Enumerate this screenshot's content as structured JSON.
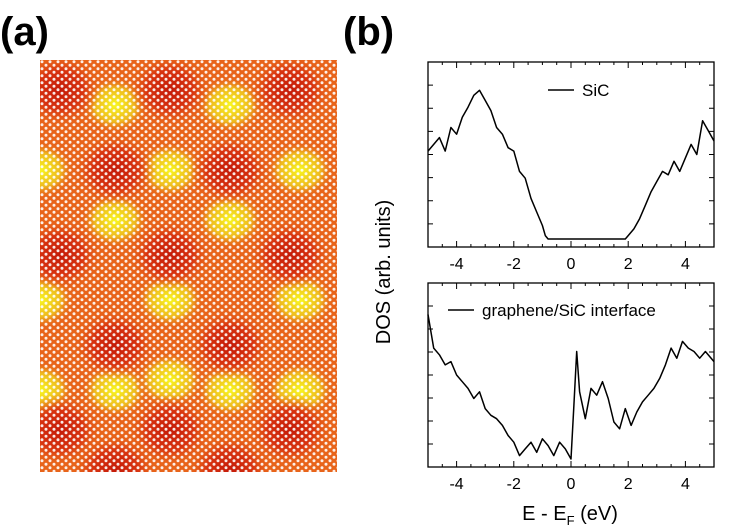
{
  "panels": {
    "a": "(a)",
    "b": "(b)"
  },
  "colors": {
    "stm_dark": "#c41a08",
    "stm_mid": "#e8641a",
    "stm_light": "#f4ee20",
    "atom": "#ffffff",
    "line": "#000000"
  },
  "chart_data": [
    {
      "type": "line",
      "title": "",
      "legend": "SiC",
      "legend_position": "top-right",
      "xlabel": "",
      "ylabel": "DOS (arb. units)",
      "xlim": [
        -5,
        5
      ],
      "ylim": [
        0,
        1
      ],
      "xticks": [
        -4,
        -2,
        0,
        2,
        4
      ],
      "xtick_labels": [
        "-4",
        "-2",
        "0",
        "2",
        "4"
      ],
      "x": [
        -5.0,
        -4.8,
        -4.6,
        -4.4,
        -4.2,
        -4.0,
        -3.8,
        -3.6,
        -3.4,
        -3.2,
        -3.0,
        -2.8,
        -2.6,
        -2.4,
        -2.2,
        -2.0,
        -1.8,
        -1.6,
        -1.4,
        -1.2,
        -1.0,
        -0.9,
        -0.8,
        0.0,
        1.0,
        1.9,
        2.0,
        2.2,
        2.4,
        2.6,
        2.8,
        3.0,
        3.2,
        3.4,
        3.6,
        3.8,
        4.0,
        4.2,
        4.4,
        4.6,
        4.8,
        5.0
      ],
      "y": [
        0.52,
        0.56,
        0.6,
        0.52,
        0.66,
        0.62,
        0.72,
        0.78,
        0.85,
        0.88,
        0.82,
        0.76,
        0.66,
        0.62,
        0.54,
        0.52,
        0.4,
        0.36,
        0.24,
        0.16,
        0.08,
        0.02,
        0.0,
        0.0,
        0.0,
        0.0,
        0.02,
        0.06,
        0.12,
        0.2,
        0.28,
        0.34,
        0.4,
        0.38,
        0.46,
        0.4,
        0.48,
        0.56,
        0.5,
        0.7,
        0.64,
        0.58
      ]
    },
    {
      "type": "line",
      "title": "",
      "legend": "graphene/SiC interface",
      "legend_position": "top-right",
      "xlabel": "E - E_F (eV)",
      "ylabel": "DOS (arb. units)",
      "xlim": [
        -5,
        5
      ],
      "ylim": [
        0,
        1
      ],
      "xticks": [
        -4,
        -2,
        0,
        2,
        4
      ],
      "xtick_labels": [
        "-4",
        "-2",
        "0",
        "2",
        "4"
      ],
      "x": [
        -5.0,
        -4.8,
        -4.6,
        -4.4,
        -4.2,
        -4.0,
        -3.8,
        -3.6,
        -3.4,
        -3.2,
        -3.0,
        -2.8,
        -2.6,
        -2.4,
        -2.2,
        -2.0,
        -1.8,
        -1.6,
        -1.4,
        -1.2,
        -1.0,
        -0.8,
        -0.6,
        -0.4,
        -0.2,
        0.0,
        0.1,
        0.2,
        0.3,
        0.5,
        0.7,
        0.9,
        1.1,
        1.3,
        1.5,
        1.7,
        1.9,
        2.1,
        2.3,
        2.5,
        2.7,
        2.9,
        3.1,
        3.3,
        3.5,
        3.7,
        3.9,
        4.1,
        4.3,
        4.5,
        4.7,
        5.0
      ],
      "y": [
        0.86,
        0.66,
        0.62,
        0.56,
        0.58,
        0.5,
        0.46,
        0.42,
        0.36,
        0.4,
        0.3,
        0.26,
        0.24,
        0.2,
        0.14,
        0.1,
        0.02,
        0.06,
        0.1,
        0.04,
        0.12,
        0.08,
        0.02,
        0.1,
        0.06,
        0.0,
        0.32,
        0.64,
        0.4,
        0.24,
        0.42,
        0.38,
        0.46,
        0.36,
        0.22,
        0.18,
        0.3,
        0.2,
        0.28,
        0.34,
        0.38,
        0.42,
        0.48,
        0.56,
        0.66,
        0.6,
        0.7,
        0.66,
        0.64,
        0.6,
        0.64,
        0.58
      ]
    }
  ],
  "shared_axis": {
    "ylabel": "DOS (arb. units)",
    "xlabel_main": "E - E",
    "xlabel_sub": "F",
    "xlabel_unit": " (eV)"
  }
}
